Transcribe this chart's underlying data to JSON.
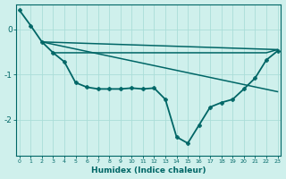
{
  "xlabel": "Humidex (Indice chaleur)",
  "background_color": "#cff0ec",
  "line_color": "#006666",
  "grid_color": "#aaddd8",
  "xlim": [
    -0.3,
    23.3
  ],
  "ylim": [
    -2.8,
    0.55
  ],
  "yticks": [
    0,
    -1,
    -2
  ],
  "xticks": [
    0,
    1,
    2,
    3,
    4,
    5,
    6,
    7,
    8,
    9,
    10,
    11,
    12,
    13,
    14,
    15,
    16,
    17,
    18,
    19,
    20,
    21,
    22,
    23
  ],
  "series": [
    {
      "x": [
        0,
        1,
        2,
        3,
        4,
        5,
        6,
        7,
        8,
        9,
        10,
        11,
        12,
        13,
        14,
        15,
        16,
        17,
        18,
        19,
        20,
        21,
        22,
        23
      ],
      "y": [
        0.42,
        0.08,
        -0.28,
        -0.52,
        -0.72,
        -1.18,
        -1.28,
        -1.32,
        -1.32,
        -1.32,
        -1.3,
        -1.32,
        -1.3,
        -1.55,
        -2.38,
        -2.52,
        -2.12,
        -1.72,
        -1.62,
        -1.55,
        -1.32,
        -1.08,
        -0.68,
        -0.48
      ],
      "marker": "P",
      "marker_size": 3.0,
      "linewidth": 1.3
    },
    {
      "x": [
        3,
        4,
        5,
        6,
        7,
        8,
        9,
        10,
        11,
        12,
        13,
        14,
        15,
        16,
        17,
        18,
        19,
        20,
        21,
        22,
        23
      ],
      "y": [
        -0.52,
        -0.52,
        -0.52,
        -0.52,
        -0.52,
        -0.52,
        -0.52,
        -0.52,
        -0.52,
        -0.52,
        -0.52,
        -0.52,
        -0.52,
        -0.52,
        -0.52,
        -0.52,
        -0.52,
        -0.52,
        -0.52,
        -0.52,
        -0.45
      ],
      "marker": null,
      "linewidth": 1.1
    },
    {
      "x": [
        2,
        23
      ],
      "y": [
        -0.28,
        -0.45
      ],
      "marker": null,
      "linewidth": 1.1
    },
    {
      "x": [
        2,
        23
      ],
      "y": [
        -0.28,
        -1.38
      ],
      "marker": null,
      "linewidth": 1.1
    }
  ]
}
